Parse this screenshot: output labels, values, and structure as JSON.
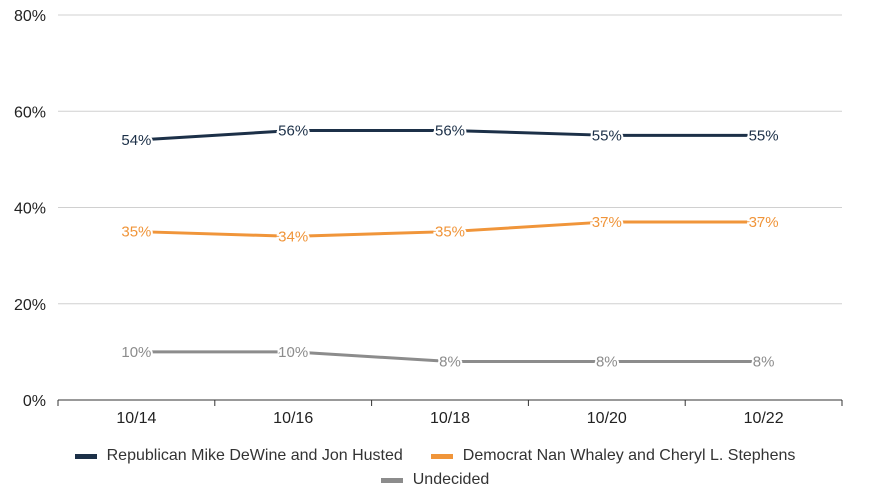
{
  "chart_data": {
    "type": "line",
    "categories": [
      "10/14",
      "10/16",
      "10/18",
      "10/20",
      "10/22"
    ],
    "ylim": [
      0,
      80
    ],
    "yticks": [
      "0%",
      "20%",
      "40%",
      "60%",
      "80%"
    ],
    "grid": true,
    "legend_position": "bottom",
    "series": [
      {
        "name": "Republican Mike DeWine and Jon Husted",
        "color": "#1c3048",
        "values": [
          54,
          56,
          56,
          55,
          55
        ],
        "labels": [
          "54%",
          "56%",
          "56%",
          "55%",
          "55%"
        ]
      },
      {
        "name": "Democrat Nan Whaley and Cheryl L. Stephens",
        "color": "#f0953a",
        "values": [
          35,
          34,
          35,
          37,
          37
        ],
        "labels": [
          "35%",
          "34%",
          "35%",
          "37%",
          "37%"
        ]
      },
      {
        "name": "Undecided",
        "color": "#8c8c8c",
        "values": [
          10,
          10,
          8,
          8,
          8
        ],
        "labels": [
          "10%",
          "10%",
          "8%",
          "8%",
          "8%"
        ]
      }
    ]
  }
}
